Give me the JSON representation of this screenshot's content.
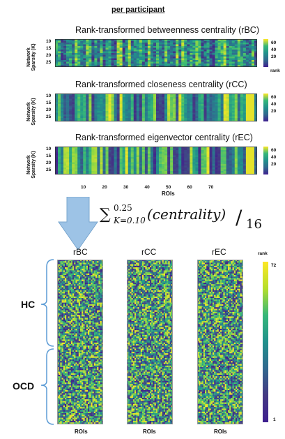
{
  "header": "per participant",
  "panels": [
    {
      "title": "Rank-transformed betweenness centrality (rBC)",
      "ylabel1": "Network",
      "ylabel2": "Sparsity (K)",
      "yticks": [
        "10",
        "15",
        "20",
        "25"
      ],
      "cbticks": [
        "60",
        "40",
        "20"
      ],
      "cblabel": "rank"
    },
    {
      "title": "Rank-transformed closeness centrality (rCC)",
      "ylabel1": "Network",
      "ylabel2": "Sparsity (K)",
      "yticks": [
        "10",
        "15",
        "20",
        "25"
      ],
      "cbticks": [
        "60",
        "40",
        "20"
      ],
      "cblabel": ""
    },
    {
      "title": "Rank-transformed eigenvector centrality (rEC)",
      "ylabel1": "Network",
      "ylabel2": "Sparsity (K)",
      "yticks": [
        "10",
        "15",
        "20",
        "25"
      ],
      "cbticks": [
        "60",
        "40",
        "20"
      ],
      "cblabel": ""
    }
  ],
  "xticks": [
    "10",
    "20",
    "30",
    "40",
    "50",
    "60",
    "70"
  ],
  "xlabel": "ROIs",
  "formula": {
    "sum": "∑",
    "sup": "0.25",
    "sub": "K=0.10",
    "body": "(centrality)",
    "div": "/",
    "den": "16"
  },
  "bottom": {
    "columns": [
      "rBC",
      "rCC",
      "rEC"
    ],
    "rank_label": "rank",
    "cb_max": "72",
    "cb_min": "1",
    "groups": [
      "HC",
      "OCD"
    ],
    "xlabel": "ROIs"
  },
  "colors": {
    "low": "#3b0f70",
    "mid": "#21918c",
    "high": "#fde725",
    "arrow": "#9dc3e6",
    "bracket": "#5b9bd5"
  }
}
